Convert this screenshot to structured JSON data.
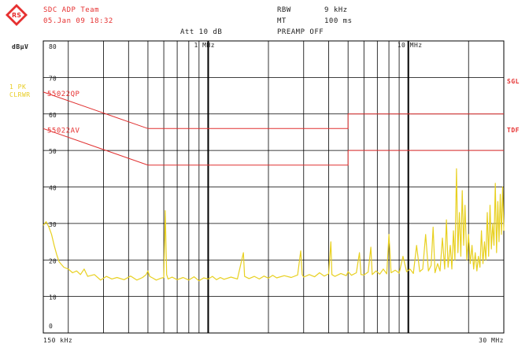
{
  "header": {
    "title": "SDC ADP Team",
    "date": "05.Jan 09 18:32",
    "rbw_label": "RBW",
    "rbw_value": "9 kHz",
    "mt_label": "MT",
    "mt_value": "100 ms",
    "att": "Att 10 dB",
    "preamp": "PREAMP OFF",
    "logo_text": "RS"
  },
  "side": {
    "unit": "dBµV",
    "trace_line1": "1 PK",
    "trace_line2": "CLRWR",
    "sgl": "SGL",
    "tdf": "TDF"
  },
  "colors": {
    "grid": "#000000",
    "limit": "#e03030",
    "trace": "#e8d020",
    "text_red": "#e63030"
  },
  "chart_data": {
    "type": "line",
    "xscale": "log",
    "xlim_mhz": [
      0.15,
      30
    ],
    "ylim": [
      0,
      80
    ],
    "ylabel": "dBµV",
    "x_tick_labels": {
      "start": "150 kHz",
      "stop": "30 MHz",
      "mid1": "1 MHz",
      "mid2": "10 MHz"
    },
    "y_ticks": [
      80,
      70,
      60,
      50,
      40,
      30,
      20,
      10,
      0
    ],
    "limit_lines": [
      {
        "name": "55022QP",
        "points_mhz_db": [
          [
            0.15,
            66
          ],
          [
            0.5,
            56
          ],
          [
            5,
            56
          ],
          [
            5,
            60
          ],
          [
            30,
            60
          ]
        ]
      },
      {
        "name": "55022AV",
        "points_mhz_db": [
          [
            0.15,
            56
          ],
          [
            0.5,
            46
          ],
          [
            5,
            46
          ],
          [
            5,
            50
          ],
          [
            30,
            50
          ]
        ]
      }
    ],
    "series": [
      {
        "name": "1 PK CLRWR",
        "points_mhz_db": [
          [
            0.15,
            29.5
          ],
          [
            0.155,
            30.5
          ],
          [
            0.16,
            29
          ],
          [
            0.165,
            27
          ],
          [
            0.17,
            24
          ],
          [
            0.175,
            21.5
          ],
          [
            0.18,
            19.5
          ],
          [
            0.19,
            18
          ],
          [
            0.2,
            17.5
          ],
          [
            0.21,
            16.5
          ],
          [
            0.22,
            17
          ],
          [
            0.23,
            16
          ],
          [
            0.24,
            17.5
          ],
          [
            0.25,
            15.5
          ],
          [
            0.27,
            16
          ],
          [
            0.29,
            14.5
          ],
          [
            0.31,
            15.5
          ],
          [
            0.33,
            14.8
          ],
          [
            0.35,
            15.2
          ],
          [
            0.38,
            14.6
          ],
          [
            0.41,
            15.6
          ],
          [
            0.44,
            14.5
          ],
          [
            0.47,
            15.2
          ],
          [
            0.49,
            16
          ],
          [
            0.5,
            17
          ],
          [
            0.51,
            15.5
          ],
          [
            0.53,
            15
          ],
          [
            0.55,
            14.5
          ],
          [
            0.58,
            15
          ],
          [
            0.6,
            15.2
          ],
          [
            0.61,
            33.5
          ],
          [
            0.62,
            16
          ],
          [
            0.63,
            14.8
          ],
          [
            0.66,
            15.3
          ],
          [
            0.7,
            14.6
          ],
          [
            0.75,
            15.2
          ],
          [
            0.8,
            14.5
          ],
          [
            0.85,
            15.4
          ],
          [
            0.9,
            14.3
          ],
          [
            0.95,
            15.1
          ],
          [
            1.0,
            14.8
          ],
          [
            1.05,
            15.5
          ],
          [
            1.1,
            14.6
          ],
          [
            1.15,
            15.2
          ],
          [
            1.2,
            14.7
          ],
          [
            1.3,
            15.3
          ],
          [
            1.4,
            14.8
          ],
          [
            1.5,
            22
          ],
          [
            1.52,
            15.5
          ],
          [
            1.6,
            14.9
          ],
          [
            1.7,
            15.5
          ],
          [
            1.8,
            14.8
          ],
          [
            1.9,
            15.6
          ],
          [
            2.0,
            15
          ],
          [
            2.1,
            15.8
          ],
          [
            2.2,
            15.1
          ],
          [
            2.4,
            15.7
          ],
          [
            2.6,
            15.2
          ],
          [
            2.8,
            15.9
          ],
          [
            2.9,
            22.5
          ],
          [
            2.95,
            16
          ],
          [
            3.0,
            15.3
          ],
          [
            3.2,
            16
          ],
          [
            3.4,
            15.4
          ],
          [
            3.6,
            16.5
          ],
          [
            3.8,
            15.6
          ],
          [
            4.0,
            16.2
          ],
          [
            4.1,
            25
          ],
          [
            4.15,
            16
          ],
          [
            4.3,
            15.5
          ],
          [
            4.6,
            16.3
          ],
          [
            4.9,
            15.7
          ],
          [
            5.0,
            16.8
          ],
          [
            5.2,
            15.8
          ],
          [
            5.5,
            16.5
          ],
          [
            5.7,
            22
          ],
          [
            5.8,
            16
          ],
          [
            6.0,
            15.9
          ],
          [
            6.3,
            16.7
          ],
          [
            6.5,
            23.5
          ],
          [
            6.6,
            16
          ],
          [
            6.9,
            17
          ],
          [
            7.2,
            16.1
          ],
          [
            7.5,
            17.5
          ],
          [
            7.8,
            16.2
          ],
          [
            8.0,
            27
          ],
          [
            8.2,
            16.5
          ],
          [
            8.6,
            17.2
          ],
          [
            9.0,
            16.4
          ],
          [
            9.4,
            21
          ],
          [
            9.8,
            16.8
          ],
          [
            10.2,
            17.5
          ],
          [
            10.6,
            16.3
          ],
          [
            11.0,
            24
          ],
          [
            11.4,
            16.8
          ],
          [
            11.8,
            17.5
          ],
          [
            12.2,
            27
          ],
          [
            12.6,
            17
          ],
          [
            13.0,
            18.5
          ],
          [
            13.3,
            29
          ],
          [
            13.6,
            16.5
          ],
          [
            14.0,
            19
          ],
          [
            14.4,
            17
          ],
          [
            14.8,
            26
          ],
          [
            15.2,
            17.5
          ],
          [
            15.5,
            31
          ],
          [
            15.8,
            18
          ],
          [
            16.2,
            24
          ],
          [
            16.5,
            17.5
          ],
          [
            16.8,
            28
          ],
          [
            17.1,
            20
          ],
          [
            17.4,
            45
          ],
          [
            17.7,
            22
          ],
          [
            18.0,
            33
          ],
          [
            18.3,
            21
          ],
          [
            18.6,
            39
          ],
          [
            18.9,
            24
          ],
          [
            19.2,
            35
          ],
          [
            19.6,
            20
          ],
          [
            20.0,
            27
          ],
          [
            20.4,
            19
          ],
          [
            20.8,
            24
          ],
          [
            21.2,
            17.5
          ],
          [
            21.6,
            22
          ],
          [
            22.0,
            17
          ],
          [
            22.4,
            21
          ],
          [
            22.8,
            18
          ],
          [
            23.2,
            28
          ],
          [
            23.6,
            19
          ],
          [
            24.0,
            25
          ],
          [
            24.4,
            20
          ],
          [
            24.8,
            33
          ],
          [
            25.2,
            21
          ],
          [
            25.6,
            35
          ],
          [
            26.0,
            23
          ],
          [
            26.4,
            30
          ],
          [
            26.8,
            24
          ],
          [
            27.2,
            41
          ],
          [
            27.6,
            22
          ],
          [
            28.0,
            36
          ],
          [
            28.4,
            25
          ],
          [
            28.8,
            38
          ],
          [
            29.2,
            27
          ],
          [
            29.6,
            40
          ],
          [
            30.0,
            28
          ]
        ]
      }
    ]
  }
}
